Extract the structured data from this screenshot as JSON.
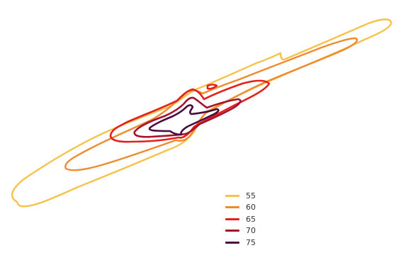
{
  "chart_data": {
    "type": "contour",
    "title": "",
    "xlabel": "",
    "ylabel": "",
    "axes_visible": false,
    "grid": false,
    "legend_position": "bottom-center",
    "levels": [
      {
        "label": "55",
        "color": "#F6C24A"
      },
      {
        "label": "60",
        "color": "#F08A2C"
      },
      {
        "label": "65",
        "color": "#E3201B"
      },
      {
        "label": "70",
        "color": "#A3132C"
      },
      {
        "label": "75",
        "color": "#4A0B3E"
      }
    ]
  }
}
